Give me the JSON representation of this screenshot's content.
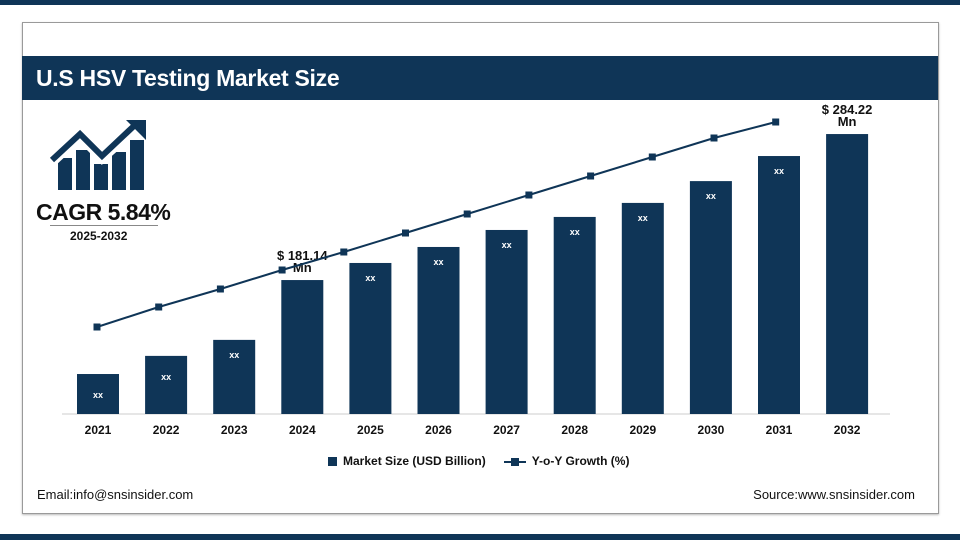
{
  "header": {
    "title": "U.S HSV Testing Market Size"
  },
  "cagr": {
    "label": "CAGR 5.84%",
    "period": "2025-2032"
  },
  "footer": {
    "email": "Email:info@snsinsider.com",
    "source": "Source:www.snsinsider.com"
  },
  "colors": {
    "primary": "#0f3557",
    "header_text": "#ffffff"
  },
  "chart_data": {
    "type": "bar",
    "categories": [
      "2021",
      "2022",
      "2023",
      "2024",
      "2025",
      "2026",
      "2027",
      "2028",
      "2029",
      "2030",
      "2031",
      "2032"
    ],
    "series": [
      {
        "name": "Market Size (USD Billion)",
        "type": "bar",
        "values": [
          113.4,
          127.6,
          138.9,
          181.14,
          193.2,
          204.5,
          216.5,
          225.7,
          235.6,
          251.0,
          268.7,
          284.22
        ],
        "labels": [
          "xx",
          "xx",
          "xx",
          "$ 181.14\nMn",
          "xx",
          "xx",
          "xx",
          "xx",
          "xx",
          "xx",
          "xx",
          "$ 284.22\nMn"
        ]
      },
      {
        "name": "Y-o-Y Growth (%)",
        "type": "line",
        "values": [
          87,
          107,
          125,
          144,
          162,
          181,
          200,
          219,
          238,
          257,
          276,
          292
        ]
      }
    ],
    "legend": {
      "position": "bottom",
      "items": [
        "Market Size (USD Billion)",
        "Y-o-Y Growth (%)"
      ]
    },
    "grid": false,
    "title": "",
    "xlabel": "",
    "ylabel": ""
  }
}
